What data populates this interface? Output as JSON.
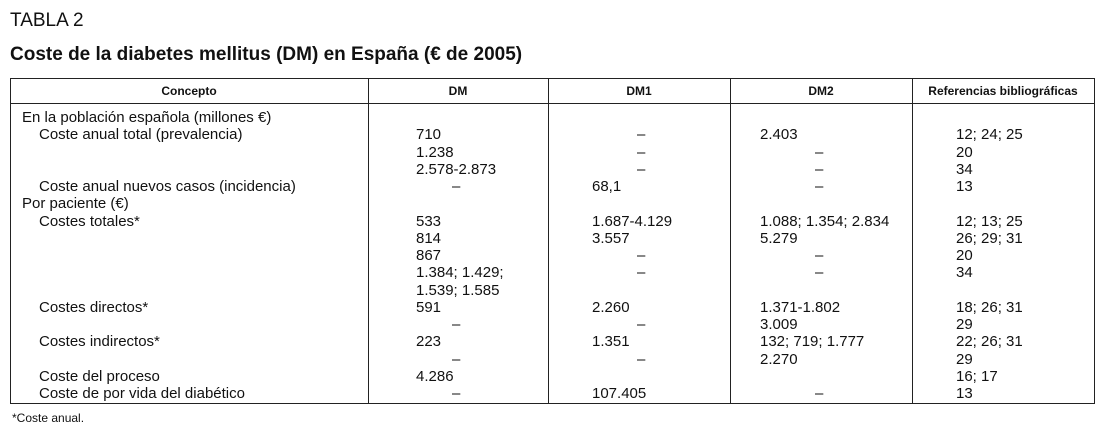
{
  "label": "TABLA 2",
  "title": "Coste de la diabetes mellitus (DM) en España (€ de 2005)",
  "table": {
    "header": [
      "Concepto",
      "DM",
      "DM1",
      "DM2",
      "Referencias bibliográficas"
    ],
    "rows": [
      [
        "En la población española (millones €)",
        null,
        null,
        null,
        null
      ],
      [
        "Coste anual total (prevalencia)",
        "710",
        "–",
        "2.403",
        "12; 24; 25"
      ],
      [
        null,
        "1.238",
        "–",
        "–",
        "20"
      ],
      [
        null,
        "2.578-2.873",
        "–",
        "–",
        "34"
      ],
      [
        "Coste anual nuevos casos (incidencia)",
        "–",
        "68,1",
        "–",
        "13"
      ],
      [
        "Por paciente (€)",
        null,
        null,
        null,
        null
      ],
      [
        "Costes totales*",
        "533",
        "1.687-4.129",
        "1.088; 1.354; 2.834",
        "12; 13; 25"
      ],
      [
        null,
        "814",
        "3.557",
        "5.279",
        "26; 29; 31"
      ],
      [
        null,
        "867",
        "–",
        "–",
        "20"
      ],
      [
        null,
        "1.384; 1.429;",
        "–",
        "–",
        "34"
      ],
      [
        null,
        "1.539; 1.585",
        null,
        null,
        null
      ],
      [
        "Costes directos*",
        "591",
        "2.260",
        "1.371-1.802",
        "18; 26; 31"
      ],
      [
        null,
        "–",
        "–",
        "3.009",
        "29"
      ],
      [
        "Costes indirectos*",
        "223",
        "1.351",
        "132; 719; 1.777",
        "22; 26; 31"
      ],
      [
        null,
        "–",
        "–",
        "2.270",
        "29"
      ],
      [
        "Coste del proceso",
        "4.286",
        null,
        null,
        "16; 17"
      ],
      [
        "Coste de por vida del diabético",
        "–",
        "107.405",
        "–",
        "13"
      ]
    ]
  },
  "footnote": "*Coste anual."
}
